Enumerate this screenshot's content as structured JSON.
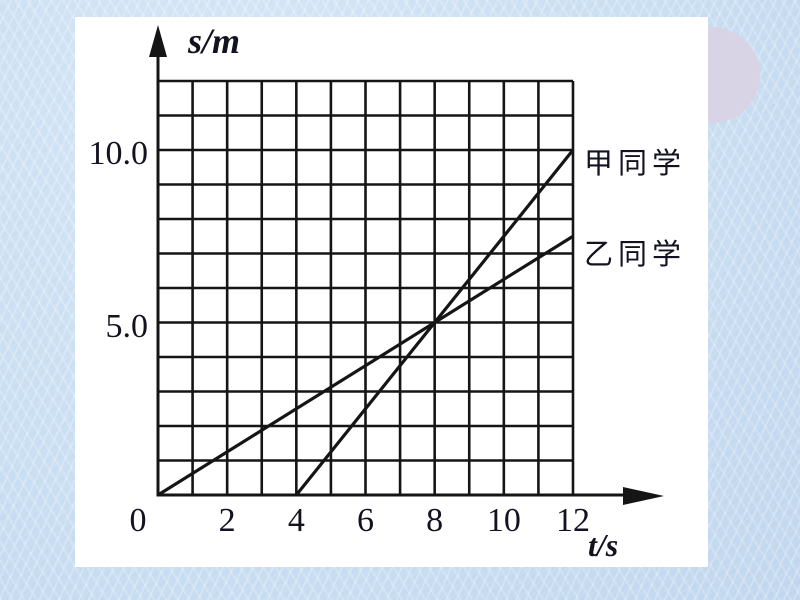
{
  "colors": {
    "background": "#cde0f2",
    "panel": "#ffffff",
    "circle": "#d8d3e5",
    "ink": "#151515",
    "text": "#121220"
  },
  "chart_data": {
    "type": "line",
    "title": "",
    "xlabel": "t/s",
    "ylabel": "s/m",
    "xlim": [
      0,
      12
    ],
    "ylim": [
      0,
      12
    ],
    "grid": true,
    "grid_step": 1,
    "x_ticks": {
      "values": [
        0,
        2,
        4,
        6,
        8,
        10,
        12
      ],
      "labels": [
        "0",
        "2",
        "4",
        "6",
        "8",
        "10",
        "12"
      ]
    },
    "y_ticks": {
      "values": [
        5,
        10
      ],
      "labels": [
        "5.0",
        "10.0"
      ]
    },
    "series": [
      {
        "name": "甲同学",
        "points": [
          [
            4,
            0
          ],
          [
            12,
            10
          ]
        ]
      },
      {
        "name": "乙同学",
        "points": [
          [
            0,
            0
          ],
          [
            12,
            7.5
          ]
        ]
      }
    ],
    "intersection": [
      8,
      5
    ],
    "legend_position": "right"
  }
}
